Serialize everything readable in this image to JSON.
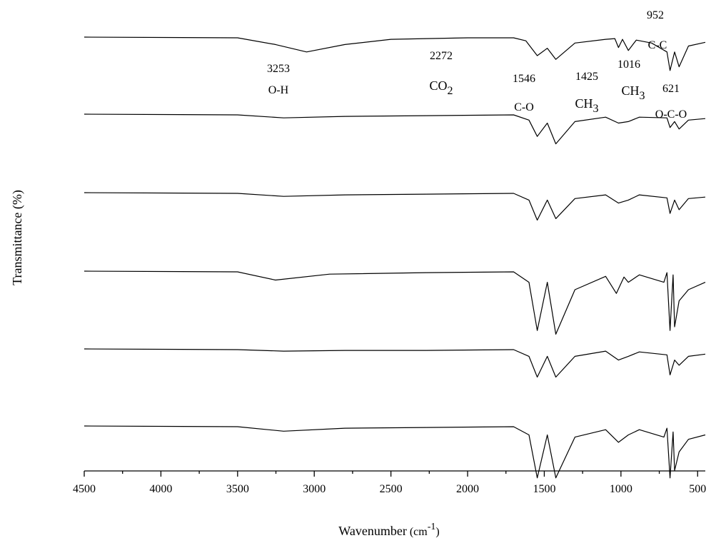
{
  "chart_data": {
    "type": "line",
    "xlabel": "Wavenumber",
    "xlabel_unit": "cm",
    "xlabel_unit_exp": "-1",
    "ylabel": "Transmittance (%)",
    "xlim": [
      4500,
      450
    ],
    "x_ticks": [
      4500,
      4000,
      3500,
      3000,
      2500,
      2000,
      1500,
      1000,
      500
    ],
    "y_ticks_shown": false,
    "stacked_offset": true,
    "series": [
      {
        "values": [
          [
            4500,
            1.0
          ],
          [
            3500,
            0.99
          ],
          [
            3253,
            0.9
          ],
          [
            3050,
            0.8
          ],
          [
            2800,
            0.9
          ],
          [
            2500,
            0.97
          ],
          [
            2272,
            0.98
          ],
          [
            2000,
            0.99
          ],
          [
            1700,
            0.99
          ],
          [
            1620,
            0.95
          ],
          [
            1546,
            0.75
          ],
          [
            1480,
            0.85
          ],
          [
            1425,
            0.7
          ],
          [
            1300,
            0.92
          ],
          [
            1100,
            0.97
          ],
          [
            1040,
            0.98
          ],
          [
            1016,
            0.86
          ],
          [
            990,
            0.97
          ],
          [
            952,
            0.82
          ],
          [
            900,
            0.96
          ],
          [
            800,
            0.92
          ],
          [
            700,
            0.8
          ],
          [
            680,
            0.55
          ],
          [
            650,
            0.8
          ],
          [
            621,
            0.6
          ],
          [
            560,
            0.88
          ],
          [
            450,
            0.93
          ]
        ]
      },
      {
        "values": [
          [
            4500,
            1.0
          ],
          [
            3500,
            0.99
          ],
          [
            3200,
            0.95
          ],
          [
            2800,
            0.97
          ],
          [
            2272,
            0.98
          ],
          [
            1700,
            0.99
          ],
          [
            1600,
            0.92
          ],
          [
            1546,
            0.7
          ],
          [
            1480,
            0.88
          ],
          [
            1425,
            0.6
          ],
          [
            1300,
            0.9
          ],
          [
            1100,
            0.96
          ],
          [
            1016,
            0.88
          ],
          [
            952,
            0.9
          ],
          [
            880,
            0.96
          ],
          [
            700,
            0.95
          ],
          [
            680,
            0.82
          ],
          [
            650,
            0.9
          ],
          [
            621,
            0.8
          ],
          [
            560,
            0.92
          ],
          [
            450,
            0.94
          ]
        ]
      },
      {
        "values": [
          [
            4500,
            1.0
          ],
          [
            3500,
            0.99
          ],
          [
            3200,
            0.95
          ],
          [
            2800,
            0.97
          ],
          [
            2272,
            0.98
          ],
          [
            1700,
            0.99
          ],
          [
            1600,
            0.9
          ],
          [
            1546,
            0.63
          ],
          [
            1480,
            0.9
          ],
          [
            1425,
            0.65
          ],
          [
            1300,
            0.92
          ],
          [
            1100,
            0.97
          ],
          [
            1016,
            0.86
          ],
          [
            952,
            0.9
          ],
          [
            880,
            0.97
          ],
          [
            700,
            0.93
          ],
          [
            680,
            0.72
          ],
          [
            650,
            0.9
          ],
          [
            621,
            0.77
          ],
          [
            560,
            0.92
          ],
          [
            450,
            0.94
          ]
        ]
      },
      {
        "values": [
          [
            4500,
            1.0
          ],
          [
            3500,
            0.99
          ],
          [
            3253,
            0.88
          ],
          [
            2900,
            0.96
          ],
          [
            2272,
            0.98
          ],
          [
            1700,
            0.99
          ],
          [
            1600,
            0.85
          ],
          [
            1546,
            0.2
          ],
          [
            1480,
            0.85
          ],
          [
            1425,
            0.15
          ],
          [
            1300,
            0.75
          ],
          [
            1100,
            0.93
          ],
          [
            1030,
            0.7
          ],
          [
            980,
            0.92
          ],
          [
            952,
            0.85
          ],
          [
            880,
            0.95
          ],
          [
            720,
            0.85
          ],
          [
            700,
            0.98
          ],
          [
            680,
            0.2
          ],
          [
            660,
            0.95
          ],
          [
            650,
            0.25
          ],
          [
            621,
            0.6
          ],
          [
            560,
            0.75
          ],
          [
            450,
            0.85
          ]
        ]
      },
      {
        "values": [
          [
            4500,
            1.0
          ],
          [
            3500,
            0.99
          ],
          [
            3200,
            0.97
          ],
          [
            2800,
            0.98
          ],
          [
            2272,
            0.98
          ],
          [
            1700,
            0.99
          ],
          [
            1600,
            0.9
          ],
          [
            1546,
            0.62
          ],
          [
            1480,
            0.9
          ],
          [
            1425,
            0.62
          ],
          [
            1300,
            0.9
          ],
          [
            1100,
            0.97
          ],
          [
            1016,
            0.85
          ],
          [
            952,
            0.9
          ],
          [
            880,
            0.96
          ],
          [
            700,
            0.92
          ],
          [
            680,
            0.65
          ],
          [
            650,
            0.85
          ],
          [
            621,
            0.78
          ],
          [
            560,
            0.9
          ],
          [
            450,
            0.93
          ]
        ]
      },
      {
        "values": [
          [
            4500,
            1.0
          ],
          [
            3500,
            0.99
          ],
          [
            3200,
            0.93
          ],
          [
            2800,
            0.97
          ],
          [
            2272,
            0.98
          ],
          [
            1700,
            0.99
          ],
          [
            1600,
            0.88
          ],
          [
            1546,
            0.3
          ],
          [
            1480,
            0.88
          ],
          [
            1425,
            0.3
          ],
          [
            1300,
            0.85
          ],
          [
            1100,
            0.95
          ],
          [
            1016,
            0.78
          ],
          [
            952,
            0.88
          ],
          [
            880,
            0.95
          ],
          [
            720,
            0.85
          ],
          [
            700,
            0.97
          ],
          [
            680,
            0.3
          ],
          [
            660,
            0.92
          ],
          [
            650,
            0.4
          ],
          [
            621,
            0.65
          ],
          [
            560,
            0.82
          ],
          [
            450,
            0.88
          ]
        ]
      }
    ],
    "annotations": [
      {
        "num": "3253",
        "label": "O-H",
        "sub": ""
      },
      {
        "num": "2272",
        "label": "CO",
        "sub": "2"
      },
      {
        "num": "1546",
        "label": "C-O",
        "sub": ""
      },
      {
        "num": "1425",
        "label": "CH",
        "sub": "3"
      },
      {
        "num": "1016",
        "label": "CH",
        "sub": "3"
      },
      {
        "num": "952",
        "label": "C-C",
        "sub": ""
      },
      {
        "num": "621",
        "label": "O-C-O",
        "sub": ""
      }
    ]
  }
}
